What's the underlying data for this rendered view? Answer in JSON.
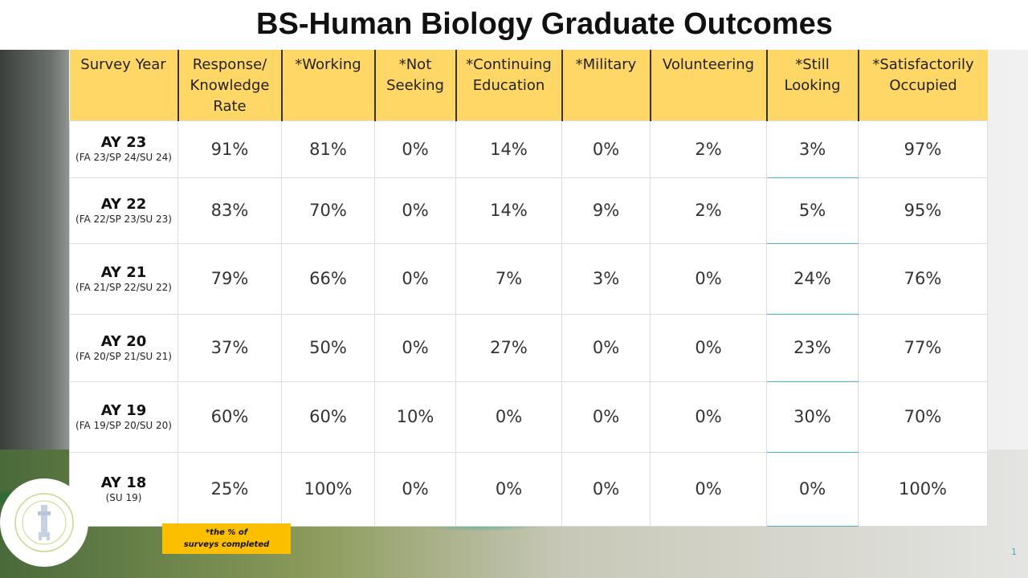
{
  "title": "BS-Human Biology Graduate Outcomes",
  "headers": [
    "Survey Year",
    "Response/ Knowledge Rate",
    "*Working",
    "*Not Seeking",
    "*Continuing Education",
    "*Military",
    "Volunteering",
    "*Still Looking",
    "*Satisfactorily Occupied"
  ],
  "rows": [
    {
      "year": "AY 23",
      "terms": "(FA 23/SP 24/SU 24)",
      "values": [
        "91%",
        "81%",
        "0%",
        "14%",
        "0%",
        "2%",
        "3%",
        "97%"
      ]
    },
    {
      "year": "AY 22",
      "terms": "(FA 22/SP 23/SU 23)",
      "values": [
        "83%",
        "70%",
        "0%",
        "14%",
        "9%",
        "2%",
        "5%",
        "95%"
      ]
    },
    {
      "year": "AY 21",
      "terms": "(FA 21/SP 22/SU 22)",
      "values": [
        "79%",
        "66%",
        "0%",
        "7%",
        "3%",
        "0%",
        "24%",
        "76%"
      ]
    },
    {
      "year": "AY 20",
      "terms": "(FA 20/SP 21/SU 21)",
      "values": [
        "37%",
        "50%",
        "0%",
        "27%",
        "0%",
        "0%",
        "23%",
        "77%"
      ]
    },
    {
      "year": "AY 19",
      "terms": "(FA 19/SP 20/SU 20)",
      "values": [
        "60%",
        "60%",
        "10%",
        "0%",
        "0%",
        "0%",
        "30%",
        "70%"
      ]
    },
    {
      "year": "AY 18",
      "terms": "(SU 19)",
      "values": [
        "25%",
        "100%",
        "0%",
        "0%",
        "0%",
        "0%",
        "0%",
        "100%"
      ]
    }
  ],
  "footnote_line1": "*the % of",
  "footnote_line2": "surveys completed",
  "logo_text": "LOGAN UNIVERSITY CAREER SERVICES",
  "page_number": "1"
}
